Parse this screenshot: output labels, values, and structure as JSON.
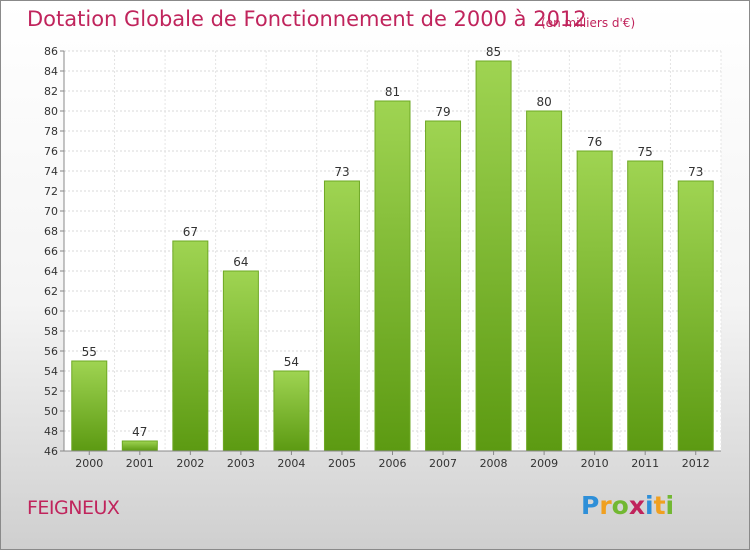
{
  "header": {
    "title": "Dotation Globale de Fonctionnement de 2000 à 2012",
    "unit_note": "(en milliers d'€)"
  },
  "footer": {
    "commune": "FEIGNEUX",
    "logo": {
      "text": "Proxiti",
      "letters": [
        {
          "char": "P",
          "color": "#2e8fd8"
        },
        {
          "char": "r",
          "color": "#f0a020"
        },
        {
          "char": "o",
          "color": "#72b832"
        },
        {
          "char": "x",
          "color": "#c0245c"
        },
        {
          "char": "i",
          "color": "#2e8fd8"
        },
        {
          "char": "t",
          "color": "#f0a020"
        },
        {
          "char": "i",
          "color": "#72b832"
        }
      ]
    }
  },
  "chart_data": {
    "type": "bar",
    "title": "Dotation Globale de Fonctionnement de 2000 à 2012",
    "subtitle": "(en milliers d'€)",
    "categories": [
      "2000",
      "2001",
      "2002",
      "2003",
      "2004",
      "2005",
      "2006",
      "2007",
      "2008",
      "2009",
      "2010",
      "2011",
      "2012"
    ],
    "values": [
      55,
      47,
      67,
      64,
      54,
      73,
      81,
      79,
      85,
      80,
      76,
      75,
      73
    ],
    "ylim": [
      46,
      86
    ],
    "ytick_step": 2,
    "grid": true,
    "bar_color": "#7cbd2e",
    "bar_color_dark": "#5c9a12",
    "bar_color_light": "#9fd452"
  }
}
